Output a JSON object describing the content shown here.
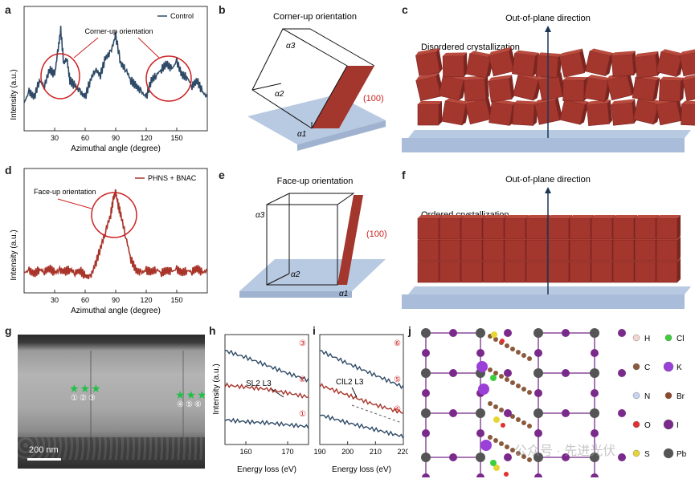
{
  "panel_labels": {
    "a": "a",
    "b": "b",
    "c": "c",
    "d": "d",
    "e": "e",
    "f": "f",
    "g": "g",
    "h": "h",
    "i": "i",
    "j": "j"
  },
  "colors": {
    "control": "#2f4a66",
    "bnac": "#a8342a",
    "cube": "#a3362d",
    "cube_dark": "#7a2520",
    "substrate": "#b8c9e2",
    "circle": "#cc2222"
  },
  "chart_data": [
    {
      "type": "line",
      "panel": "a",
      "xlabel": "Azimuthal angle (degree)",
      "ylabel": "Intensity (a.u.)",
      "xticks": [
        "30",
        "60",
        "90",
        "120",
        "150"
      ],
      "xlim": [
        0,
        180
      ],
      "series": [
        {
          "name": "Control",
          "x": [
            0,
            5,
            10,
            15,
            20,
            25,
            30,
            33,
            36,
            39,
            42,
            45,
            50,
            55,
            60,
            65,
            70,
            75,
            80,
            85,
            90,
            95,
            100,
            105,
            110,
            115,
            120,
            125,
            130,
            135,
            140,
            145,
            150,
            155,
            160,
            165,
            170,
            175,
            180
          ],
          "values": [
            0.25,
            0.35,
            0.3,
            0.45,
            0.4,
            0.55,
            0.5,
            0.7,
            0.9,
            0.6,
            0.65,
            0.45,
            0.4,
            0.35,
            0.3,
            0.45,
            0.55,
            0.5,
            0.65,
            0.7,
            0.85,
            0.6,
            0.55,
            0.45,
            0.4,
            0.35,
            0.3,
            0.45,
            0.5,
            0.55,
            0.6,
            0.55,
            0.62,
            0.5,
            0.48,
            0.4,
            0.45,
            0.35,
            0.3
          ]
        }
      ],
      "annotation": "Corner-up orientation"
    },
    {
      "type": "line",
      "panel": "d",
      "xlabel": "Azimuthal angle (degree)",
      "ylabel": "Intensity (a.u.)",
      "xticks": [
        "30",
        "60",
        "90",
        "120",
        "150"
      ],
      "xlim": [
        0,
        180
      ],
      "series": [
        {
          "name": "PHNS + BNAC",
          "x": [
            0,
            5,
            10,
            15,
            20,
            25,
            30,
            35,
            40,
            45,
            50,
            55,
            60,
            65,
            70,
            75,
            80,
            85,
            88,
            90,
            92,
            95,
            100,
            105,
            110,
            115,
            120,
            125,
            130,
            135,
            140,
            145,
            150,
            155,
            160,
            165,
            170,
            175,
            180
          ],
          "values": [
            0.18,
            0.2,
            0.17,
            0.21,
            0.19,
            0.22,
            0.18,
            0.2,
            0.19,
            0.21,
            0.18,
            0.2,
            0.15,
            0.14,
            0.25,
            0.4,
            0.55,
            0.7,
            0.85,
            0.9,
            0.8,
            0.7,
            0.5,
            0.3,
            0.2,
            0.18,
            0.2,
            0.19,
            0.21,
            0.18,
            0.2,
            0.19,
            0.21,
            0.18,
            0.2,
            0.19,
            0.22,
            0.18,
            0.2
          ]
        }
      ],
      "annotation": "Face-up orientation"
    },
    {
      "type": "line",
      "panel": "h",
      "xlabel": "Energy loss (eV)",
      "ylabel": "Intensity (a.u.)",
      "xticks": [
        "160",
        "170"
      ],
      "xlim": [
        155,
        175
      ],
      "series": [
        {
          "name": "③",
          "x": [
            155,
            160,
            165,
            170,
            175
          ],
          "values": [
            0.95,
            0.88,
            0.8,
            0.72,
            0.65
          ]
        },
        {
          "name": "②",
          "x": [
            155,
            160,
            165,
            170,
            175
          ],
          "values": [
            0.6,
            0.58,
            0.56,
            0.52,
            0.48
          ]
        },
        {
          "name": "①",
          "x": [
            155,
            160,
            165,
            170,
            175
          ],
          "values": [
            0.25,
            0.23,
            0.22,
            0.2,
            0.18
          ]
        }
      ],
      "annotation": "SL2 L3"
    },
    {
      "type": "line",
      "panel": "i",
      "xlabel": "Energy loss (eV)",
      "ylabel": "Intensity (a.u.)",
      "xticks": [
        "190",
        "200",
        "210",
        "220"
      ],
      "xlim": [
        190,
        220
      ],
      "series": [
        {
          "name": "⑥",
          "x": [
            190,
            200,
            210,
            220
          ],
          "values": [
            0.95,
            0.82,
            0.7,
            0.58
          ]
        },
        {
          "name": "⑤",
          "x": [
            190,
            200,
            210,
            220
          ],
          "values": [
            0.6,
            0.5,
            0.4,
            0.32
          ]
        },
        {
          "name": "④",
          "x": [
            190,
            200,
            210,
            220
          ],
          "values": [
            0.3,
            0.22,
            0.15,
            0.08
          ]
        }
      ],
      "annotation": "ClL2 L3"
    }
  ],
  "b": {
    "title": "Corner-up orientation",
    "a1": "α1",
    "a2": "α2",
    "a3": "α3",
    "plane": "(100)"
  },
  "c": {
    "direction": "Out-of-plane direction",
    "label": "Disordered crystallization"
  },
  "e": {
    "title": "Face-up orientation",
    "a1": "α1",
    "a2": "α2",
    "a3": "α3",
    "plane": "(100)"
  },
  "f": {
    "direction": "Out-of-plane direction",
    "label": "Ordered crystallization"
  },
  "g": {
    "scale": "200 nm",
    "markers_left": "①②③",
    "markers_right": "④⑤⑥"
  },
  "j": {
    "legend": [
      {
        "el": "H",
        "color": "#f2d7d0"
      },
      {
        "el": "Cl",
        "color": "#3ccf3c"
      },
      {
        "el": "C",
        "color": "#8b5a3c"
      },
      {
        "el": "K",
        "color": "#9b3fd9"
      },
      {
        "el": "N",
        "color": "#c7d3f0"
      },
      {
        "el": "Br",
        "color": "#8b4a2b"
      },
      {
        "el": "O",
        "color": "#e23030"
      },
      {
        "el": "I",
        "color": "#7a2a8a"
      },
      {
        "el": "S",
        "color": "#e6d634"
      },
      {
        "el": "Pb",
        "color": "#555555"
      }
    ]
  },
  "watermark": "公众号 · 先进光伏"
}
